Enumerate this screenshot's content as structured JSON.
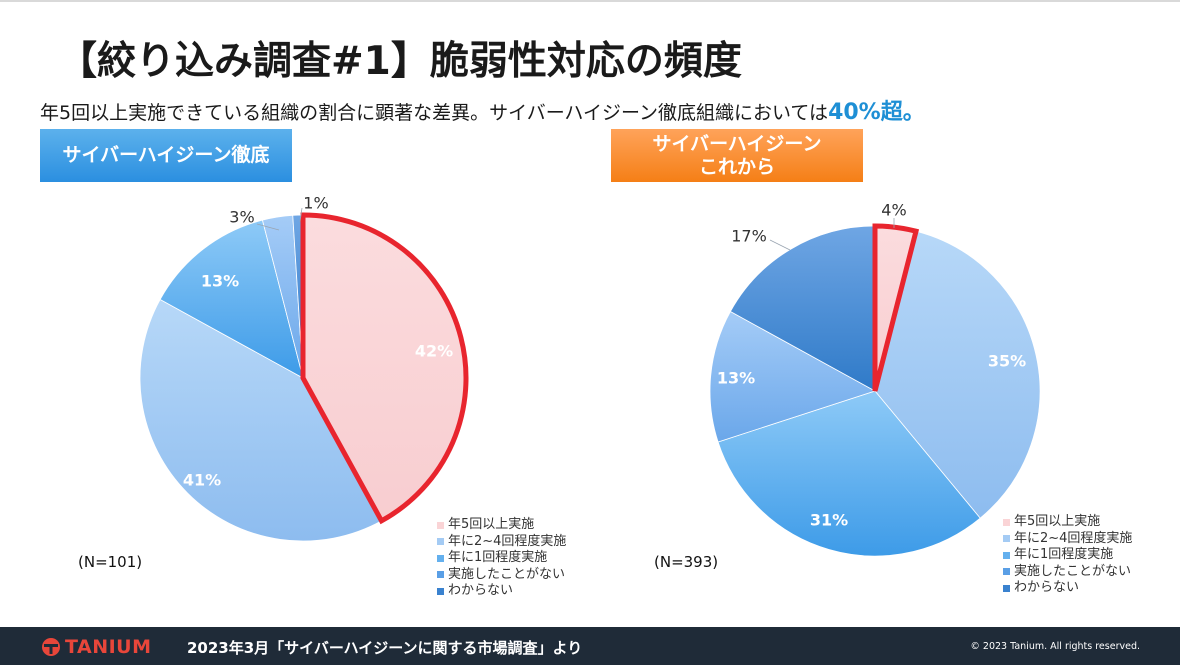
{
  "title": "【絞り込み調査#1】脆弱性対応の頻度",
  "subtitle": {
    "text": "年5回以上実施できている組織の割合に顕著な差異。サイバーハイジーン徹底組織においては",
    "highlight": "40%超。"
  },
  "badges": {
    "left": "サイバーハイジーン徹底",
    "right_line1": "サイバーハイジーン",
    "right_line2": "これから"
  },
  "chart_data": [
    {
      "type": "pie",
      "group": "サイバーハイジーン徹底",
      "sample_label": "(N=101)",
      "categories": [
        "年5回以上実施",
        "年に2~4回程度実施",
        "年に1回程度実施",
        "実施したことがない",
        "わからない"
      ],
      "values": [
        42,
        41,
        13,
        3,
        1
      ],
      "labels": [
        "42%",
        "41%",
        "13%",
        "3%",
        "1%"
      ],
      "highlighted": "年5回以上実施"
    },
    {
      "type": "pie",
      "group": "サイバーハイジーンこれから",
      "sample_label": "(N=393)",
      "categories": [
        "年5回以上実施",
        "年に2~4回程度実施",
        "年に1回程度実施",
        "実施したことがない",
        "わからない"
      ],
      "values": [
        4,
        35,
        31,
        13,
        17
      ],
      "labels": [
        "4%",
        "35%",
        "31%",
        "13%",
        "17%"
      ],
      "highlighted": "年5回以上実施"
    }
  ],
  "legend": [
    "年5回以上実施",
    "年に2~4回程度実施",
    "年に1回程度実施",
    "実施したことがない",
    "わからない"
  ],
  "colors": {
    "slice_fills": [
      "#fad4d6",
      "#a4cbf4",
      "#64b0ee",
      "#7fb4ee",
      "#4a8fd6"
    ],
    "highlight_stroke": "#e8252e",
    "accent_blue": "#1e8fd5",
    "footer_bg": "#1f2b38",
    "logo_red": "#e8463a"
  },
  "footer": {
    "logo_text": "TANIUM",
    "source": "2023年3月「サイバーハイジーンに関する市場調査」より",
    "copyright": "© 2023 Tanium. All rights reserved."
  }
}
